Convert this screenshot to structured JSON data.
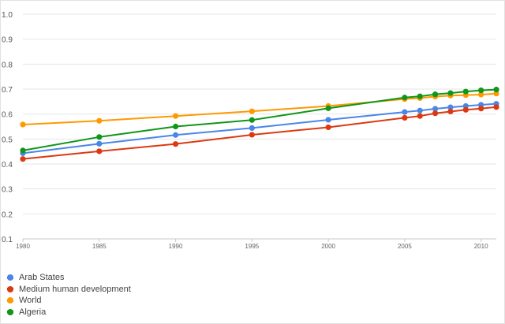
{
  "chart_data": {
    "type": "line",
    "title": "",
    "xlabel": "",
    "ylabel": "",
    "x": [
      1980,
      1985,
      1990,
      1995,
      2000,
      2005,
      2006,
      2007,
      2008,
      2009,
      2010,
      2011
    ],
    "x_tick_labels": [
      "1980",
      "1985",
      "1990",
      "1995",
      "2000",
      "2005",
      "2010"
    ],
    "y_tick_labels": [
      "0.1",
      "0.2",
      "0.3",
      "0.4",
      "0.5",
      "0.6",
      "0.7",
      "0.8",
      "0.9",
      "1.0"
    ],
    "xlim": [
      1980,
      2011
    ],
    "ylim": [
      0.1,
      1.0
    ],
    "grid": true,
    "legend_position": "bottom-left",
    "series": [
      {
        "name": "Arab States",
        "color": "#4a86e8",
        "values": [
          0.443,
          0.481,
          0.516,
          0.544,
          0.577,
          0.608,
          0.614,
          0.621,
          0.627,
          0.632,
          0.637,
          0.641
        ]
      },
      {
        "name": "Medium human development",
        "color": "#dc3912",
        "values": [
          0.42,
          0.451,
          0.48,
          0.517,
          0.547,
          0.585,
          0.592,
          0.603,
          0.61,
          0.617,
          0.622,
          0.628
        ]
      },
      {
        "name": "World",
        "color": "#ff9900",
        "values": [
          0.558,
          0.573,
          0.592,
          0.611,
          0.632,
          0.66,
          0.664,
          0.67,
          0.674,
          0.676,
          0.678,
          0.682
        ]
      },
      {
        "name": "Algeria",
        "color": "#109618",
        "values": [
          0.454,
          0.508,
          0.55,
          0.576,
          0.623,
          0.666,
          0.671,
          0.679,
          0.684,
          0.69,
          0.695,
          0.698
        ]
      }
    ]
  }
}
